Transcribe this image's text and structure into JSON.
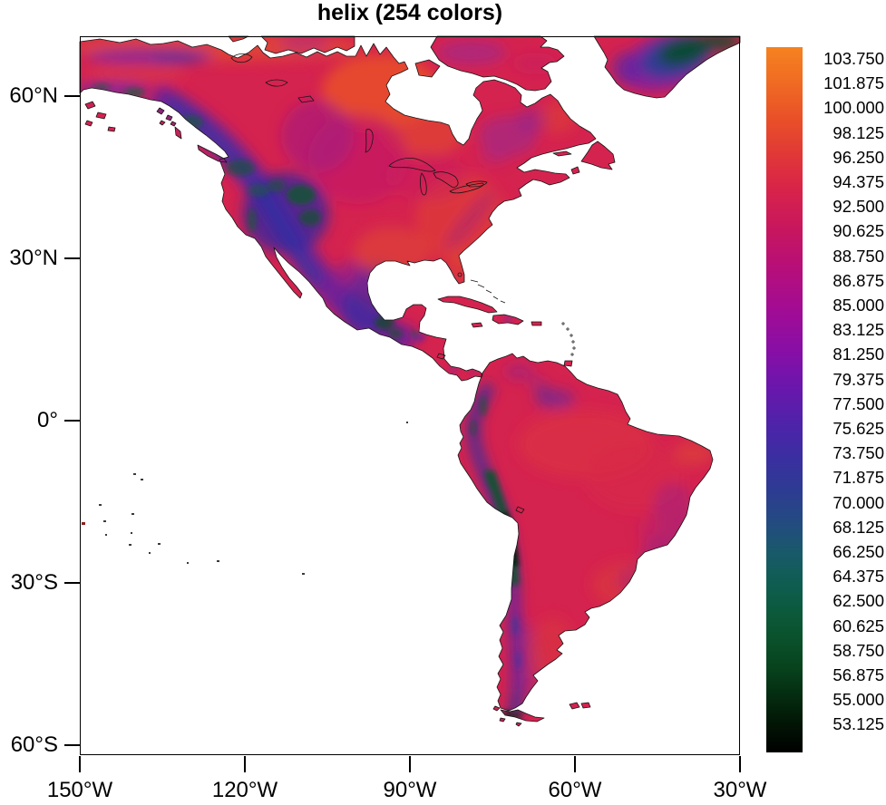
{
  "title": "helix (254 colors)",
  "chart_data": {
    "type": "heatmap",
    "subtype": "filled-raster-geographic-map",
    "region_shown": "North and South America",
    "title": "helix (254 colors)",
    "colormap_name": "helix",
    "colormap_color_count": 254,
    "grid": "off",
    "ocean_fill": "#ffffff",
    "land_base_color": "#D5234F",
    "x_axis": {
      "ticks": [
        {
          "label": "150°W",
          "lon": -150
        },
        {
          "label": "120°W",
          "lon": -120
        },
        {
          "label": "90°W",
          "lon": -90
        },
        {
          "label": "60°W",
          "lon": -60
        },
        {
          "label": "30°W",
          "lon": -30
        }
      ]
    },
    "y_axis": {
      "ticks": [
        {
          "label": "60°N",
          "lat": 60
        },
        {
          "label": "30°N",
          "lat": 30
        },
        {
          "label": "0°",
          "lat": 0
        },
        {
          "label": "30°S",
          "lat": -30
        },
        {
          "label": "60°S",
          "lat": -60
        }
      ]
    },
    "map_extent": {
      "lon_min": -150,
      "lon_max": -30,
      "lat_min": -62,
      "lat_max": 71
    },
    "colorbar": {
      "position": "right",
      "orientation": "vertical",
      "step": 1.875,
      "labels": [
        "103.750",
        "101.875",
        "100.000",
        "98.125",
        "96.250",
        "94.375",
        "92.500",
        "90.625",
        "88.750",
        "86.875",
        "85.000",
        "83.125",
        "81.250",
        "79.375",
        "77.500",
        "75.625",
        "73.750",
        "71.875",
        "70.000",
        "68.125",
        "66.250",
        "64.375",
        "62.500",
        "60.625",
        "58.750",
        "56.875",
        "55.000",
        "53.125"
      ],
      "values": [
        103.75,
        101.875,
        100.0,
        98.125,
        96.25,
        94.375,
        92.5,
        90.625,
        88.75,
        86.875,
        85.0,
        83.125,
        81.25,
        79.375,
        77.5,
        75.625,
        73.75,
        71.875,
        70.0,
        68.125,
        66.25,
        64.375,
        62.5,
        60.625,
        58.75,
        56.875,
        55.0,
        53.125
      ],
      "gradient_stops": [
        {
          "offset": 0.0,
          "color": "#F58220"
        },
        {
          "offset": 0.05,
          "color": "#F06B23"
        },
        {
          "offset": 0.1,
          "color": "#E95128"
        },
        {
          "offset": 0.15,
          "color": "#E13936"
        },
        {
          "offset": 0.2,
          "color": "#D82449"
        },
        {
          "offset": 0.26,
          "color": "#C7165F"
        },
        {
          "offset": 0.31,
          "color": "#B80F78"
        },
        {
          "offset": 0.37,
          "color": "#A30C93"
        },
        {
          "offset": 0.43,
          "color": "#880EA6"
        },
        {
          "offset": 0.48,
          "color": "#6B16AC"
        },
        {
          "offset": 0.53,
          "color": "#5022AA"
        },
        {
          "offset": 0.58,
          "color": "#3B2EA1"
        },
        {
          "offset": 0.63,
          "color": "#2D3C92"
        },
        {
          "offset": 0.68,
          "color": "#224D7E"
        },
        {
          "offset": 0.72,
          "color": "#185A68"
        },
        {
          "offset": 0.76,
          "color": "#0F5D51"
        },
        {
          "offset": 0.8,
          "color": "#0C5A3C"
        },
        {
          "offset": 0.84,
          "color": "#0A512B"
        },
        {
          "offset": 0.88,
          "color": "#07431D"
        },
        {
          "offset": 0.92,
          "color": "#042C10"
        },
        {
          "offset": 0.96,
          "color": "#021505"
        },
        {
          "offset": 1.0,
          "color": "#000000"
        }
      ]
    },
    "features_depicted": [
      "coastlines and lake outlines in black",
      "high values (orange/red) over lowlands",
      "low values (blue/green/black) over Rockies, Mexican plateau, Greenland ice sheet and Andes/Altiplano"
    ]
  }
}
